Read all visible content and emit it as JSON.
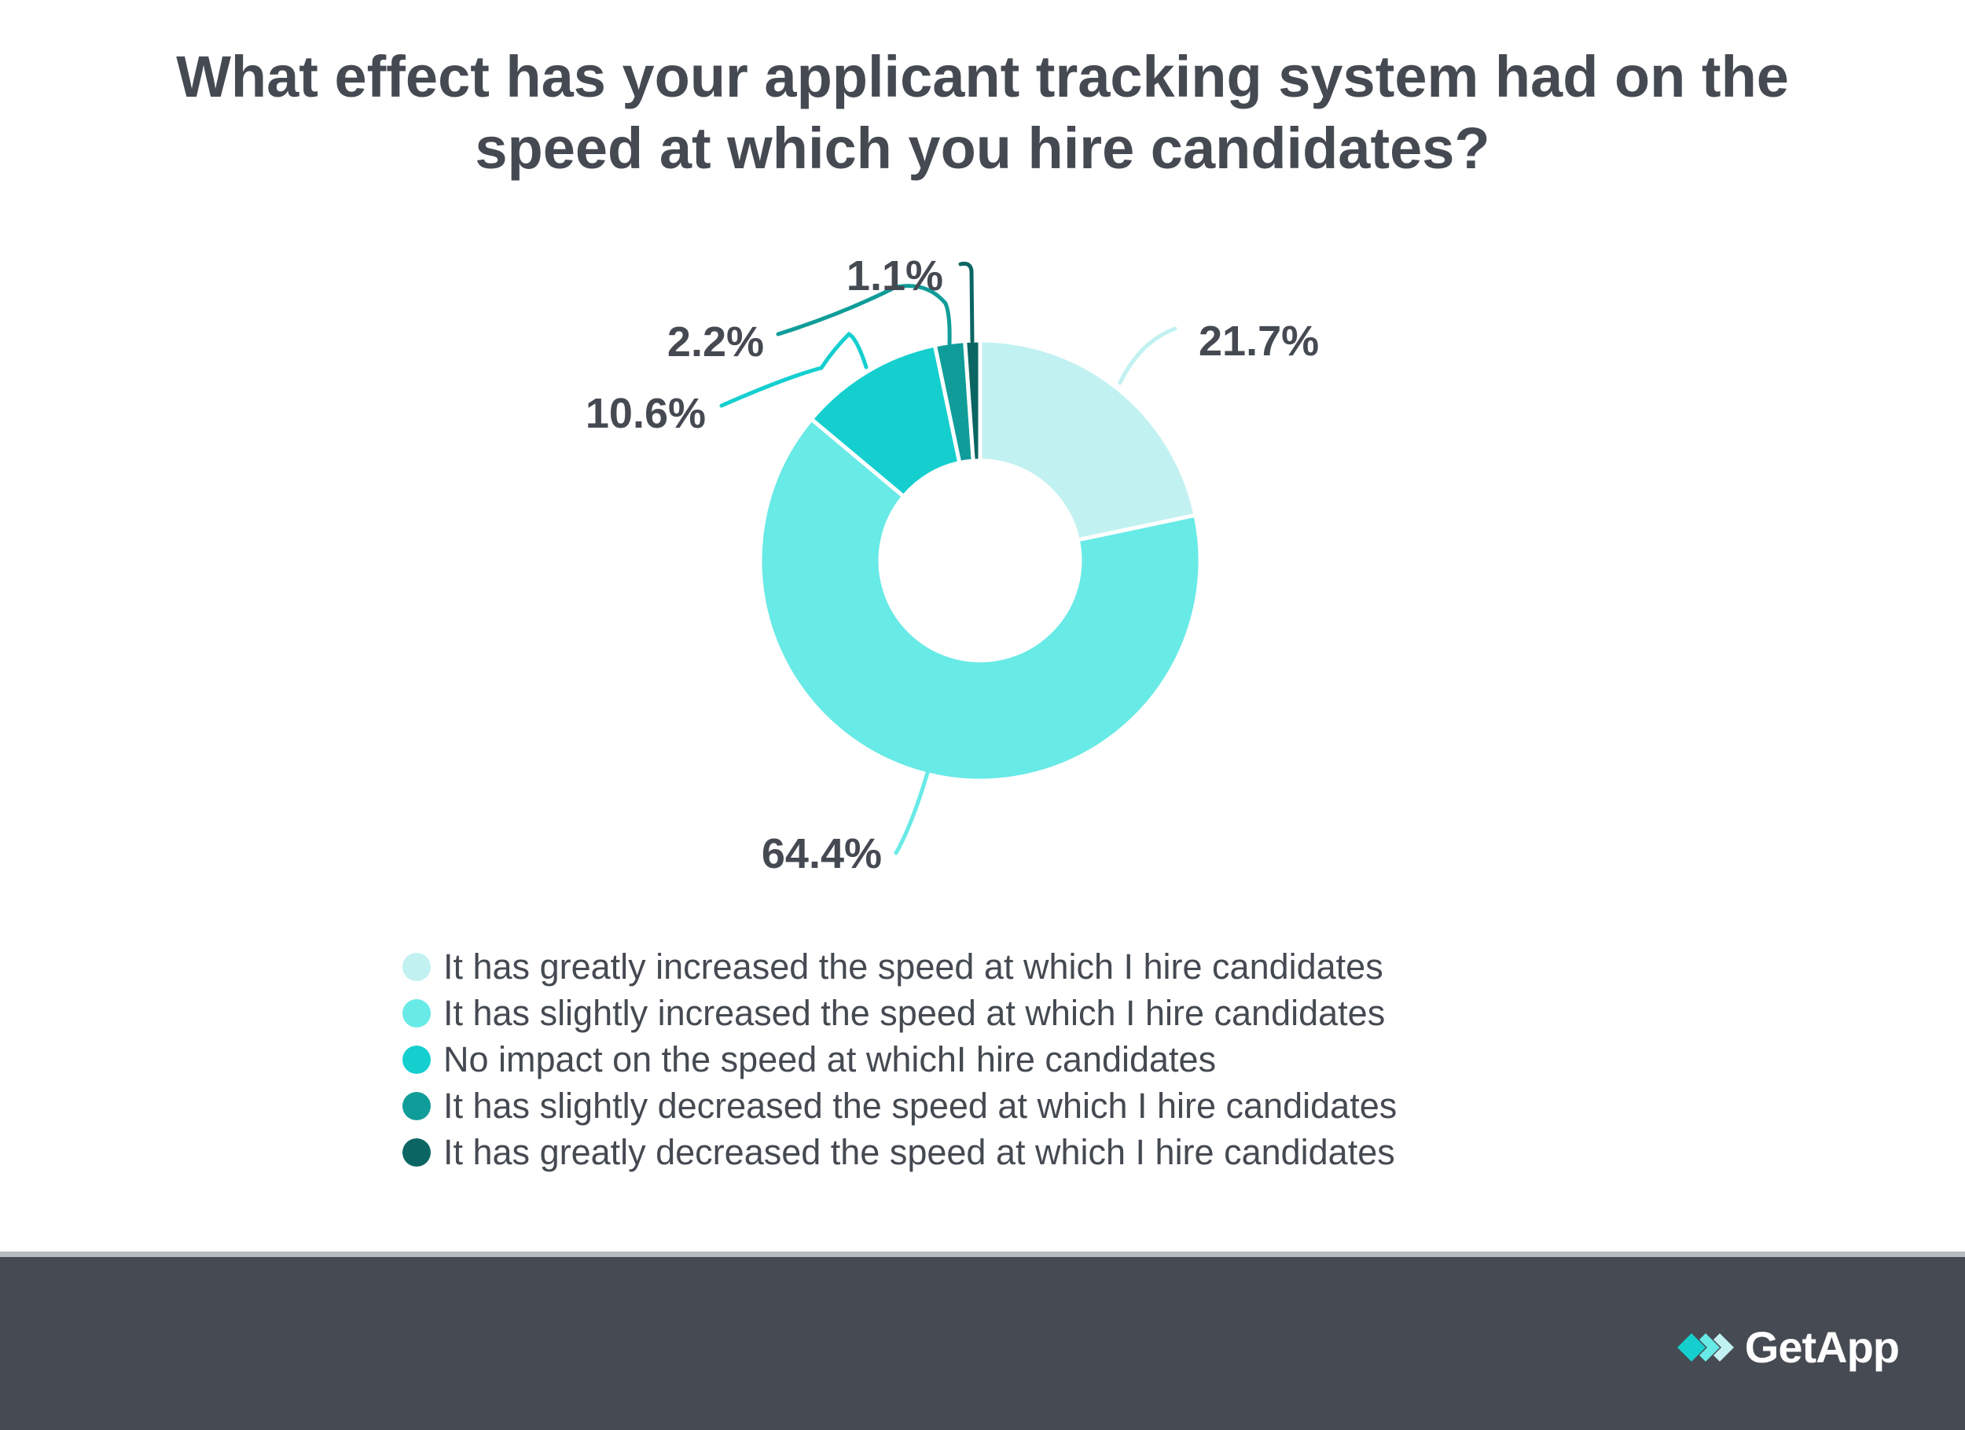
{
  "chart_data": {
    "type": "pie",
    "variant": "donut",
    "title": "What effect has your applicant tracking system had on the speed at which you hire candidates?",
    "categories": [
      "It has greatly increased the speed at which I hire candidates",
      "It has slightly increased the speed at which I hire candidates",
      "No impact on the speed at whichI hire candidates",
      "It has slightly decreased the speed at which I hire candidates",
      "It has greatly decreased the speed at which I hire candidates"
    ],
    "values": [
      21.7,
      64.4,
      10.6,
      2.2,
      1.1
    ],
    "value_labels": [
      "21.7%",
      "64.4%",
      "10.6%",
      "2.2%",
      "1.1%"
    ],
    "colors": [
      "#c2f1f1",
      "#68eae6",
      "#15cfcf",
      "#109d99",
      "#0b6663"
    ],
    "legend_position": "bottom"
  },
  "footer": {
    "brand_name": "GetApp",
    "brand_icon": "getapp-chevrons-icon"
  }
}
